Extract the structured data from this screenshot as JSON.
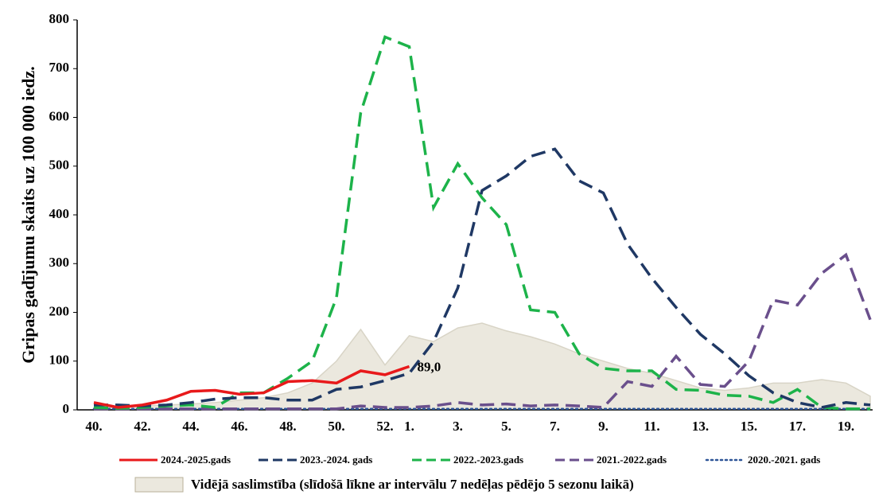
{
  "chart_data": {
    "type": "line",
    "y_label": "Gripas gadījumu skaits uz 100 000 iedz.",
    "categories": [
      "40.",
      null,
      "42.",
      null,
      "44.",
      null,
      "46.",
      null,
      "48.",
      null,
      "50.",
      null,
      "52.",
      "1.",
      null,
      "3.",
      null,
      "5.",
      null,
      "7.",
      null,
      "9.",
      null,
      "11.",
      null,
      "13.",
      null,
      "15.",
      null,
      "17.",
      null,
      "19.",
      null
    ],
    "ylim": [
      0,
      800
    ],
    "yticks": [
      0,
      100,
      200,
      300,
      400,
      500,
      600,
      700,
      800
    ],
    "grid": false,
    "legend": "bottom",
    "series": [
      {
        "name": "2024.-2025.gads",
        "color": "#e8191b",
        "line_style": "solid",
        "values": [
          15,
          5,
          10,
          20,
          38,
          40,
          32,
          35,
          58,
          60,
          55,
          80,
          72,
          89.0,
          null,
          null,
          null,
          null,
          null,
          null,
          null,
          null,
          null,
          null,
          null,
          null,
          null,
          null,
          null,
          null,
          null,
          null,
          null
        ],
        "value_labels": [
          null,
          null,
          null,
          null,
          null,
          null,
          null,
          null,
          null,
          null,
          null,
          null,
          null,
          "89,0",
          null,
          null,
          null,
          null,
          null,
          null,
          null,
          null,
          null,
          null,
          null,
          null,
          null,
          null,
          null,
          null,
          null,
          null,
          null
        ]
      },
      {
        "name": "2023.-2024. gads",
        "color": "#1f3864",
        "line_style": "dashed",
        "values": [
          10,
          10,
          8,
          10,
          15,
          22,
          25,
          25,
          20,
          20,
          42,
          47,
          60,
          75,
          140,
          250,
          450,
          480,
          520,
          535,
          470,
          445,
          340,
          270,
          210,
          155,
          115,
          70,
          35,
          15,
          5,
          15,
          10
        ]
      },
      {
        "name": "2022.-2023.gads",
        "color": "#1db34a",
        "line_style": "dashed",
        "values": [
          5,
          3,
          5,
          8,
          10,
          5,
          35,
          35,
          65,
          100,
          230,
          610,
          765,
          745,
          415,
          505,
          435,
          380,
          205,
          200,
          115,
          85,
          80,
          80,
          42,
          40,
          30,
          28,
          15,
          42,
          5,
          2,
          2
        ]
      },
      {
        "name": "2021.-2022.gads",
        "color": "#6a4f8c",
        "line_style": "dashed",
        "values": [
          2,
          2,
          2,
          2,
          2,
          2,
          2,
          2,
          2,
          2,
          2,
          8,
          5,
          5,
          8,
          15,
          10,
          12,
          8,
          10,
          8,
          5,
          58,
          48,
          110,
          52,
          48,
          100,
          225,
          215,
          280,
          318,
          185
        ]
      },
      {
        "name": "2020.-2021. gads",
        "color": "#2e5597",
        "line_style": "dotted",
        "values": [
          2,
          2,
          2,
          2,
          2,
          2,
          2,
          2,
          2,
          2,
          2,
          2,
          2,
          2,
          2,
          2,
          2,
          2,
          2,
          2,
          2,
          2,
          2,
          2,
          2,
          2,
          2,
          2,
          2,
          2,
          2,
          2,
          2
        ]
      },
      {
        "name": "Vidējā saslimstība (slīdošā līkne ar intervālu 7 nedēļas pēdējo 5 sezonu laikā)",
        "color": "#ebe8de",
        "line_style": "area",
        "values": [
          5,
          5,
          8,
          10,
          12,
          15,
          20,
          25,
          35,
          55,
          100,
          165,
          92,
          152,
          140,
          168,
          178,
          162,
          150,
          135,
          115,
          100,
          85,
          75,
          60,
          45,
          40,
          45,
          55,
          55,
          62,
          55,
          28
        ]
      }
    ]
  }
}
